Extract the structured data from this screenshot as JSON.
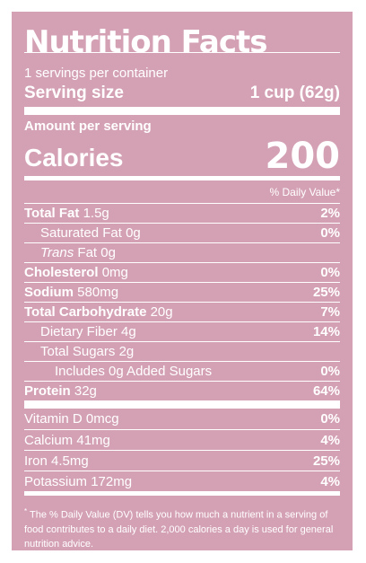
{
  "label": {
    "title": "Nutrition Facts",
    "servings_per_container": "1 servings per container",
    "serving_size_label": "Serving size",
    "serving_size_value": "1 cup (62g)",
    "amount_per_serving": "Amount per serving",
    "calories_label": "Calories",
    "calories_value": "200",
    "dv_header": "% Daily Value*",
    "nutrients": [
      {
        "name": "Total Fat",
        "amount": "1.5g",
        "dv": "2%"
      },
      {
        "name": "Saturated Fat",
        "amount": "0g",
        "dv": "0%"
      },
      {
        "name": "Trans",
        "suffix": "Fat",
        "amount": "0g",
        "dv": ""
      },
      {
        "name": "Cholesterol",
        "amount": "0mg",
        "dv": "0%"
      },
      {
        "name": "Sodium",
        "amount": "580mg",
        "dv": "25%"
      },
      {
        "name": "Total Carbohydrate",
        "amount": "20g",
        "dv": "7%"
      },
      {
        "name": "Dietary Fiber",
        "amount": "4g",
        "dv": "14%"
      },
      {
        "name": "Total Sugars",
        "amount": "2g",
        "dv": ""
      },
      {
        "name": "Includes 0g Added Sugars",
        "amount": "",
        "dv": "0%"
      },
      {
        "name": "Protein",
        "amount": "32g",
        "dv": "64%"
      }
    ],
    "vitamins": [
      {
        "name": "Vitamin D",
        "amount": "0mcg",
        "dv": "0%"
      },
      {
        "name": "Calcium",
        "amount": "41mg",
        "dv": "4%"
      },
      {
        "name": "Iron",
        "amount": "4.5mg",
        "dv": "25%"
      },
      {
        "name": "Potassium",
        "amount": "172mg",
        "dv": "4%"
      }
    ],
    "footnote_mark": "*",
    "footnote": "The % Daily Value (DV) tells you how much a nutrient in a serving of food contributes to a daily diet. 2,000 calories a day is used for general nutrition advice."
  },
  "colors": {
    "background": "#d4a1b4",
    "text": "#ffffff"
  }
}
